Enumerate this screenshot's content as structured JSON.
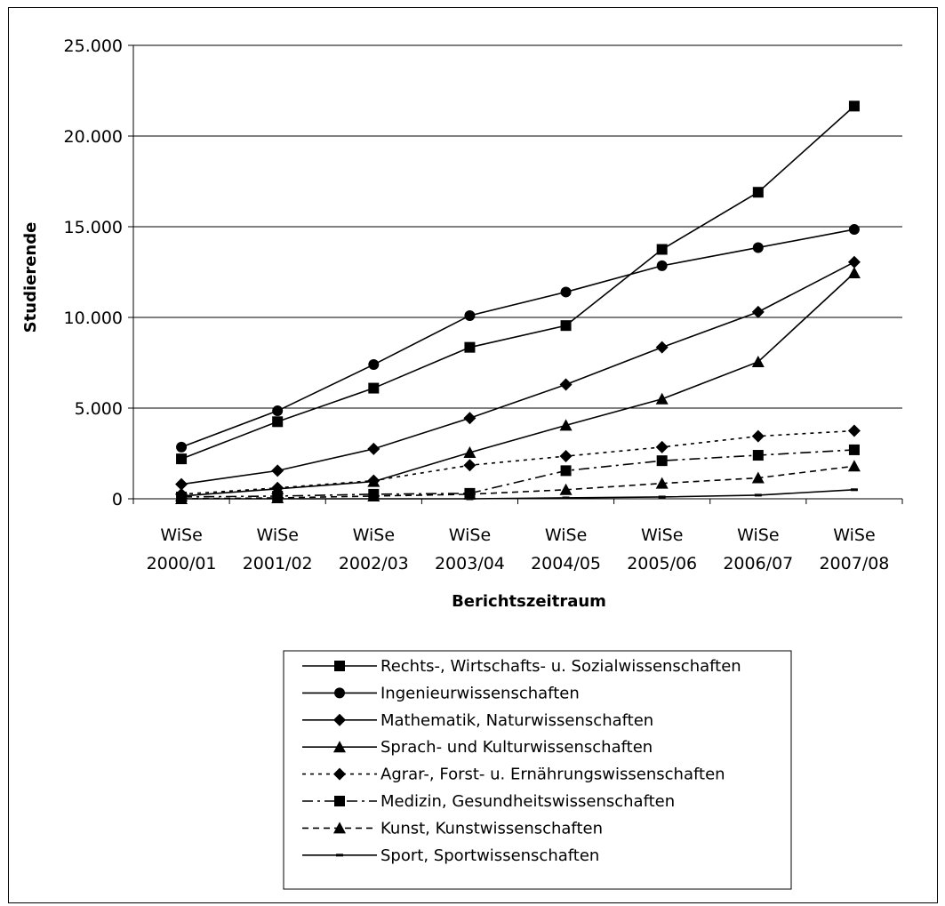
{
  "chart_data": {
    "type": "line",
    "title": "",
    "xlabel": "Berichtszeitraum",
    "ylabel": "Studierende",
    "ylim": [
      0,
      25000
    ],
    "yticks": [
      0,
      5000,
      10000,
      15000,
      20000,
      25000
    ],
    "ytick_labels": [
      "0",
      "5.000",
      "10.000",
      "15.000",
      "20.000",
      "25.000"
    ],
    "grid": "horizontal",
    "legend_position": "bottom",
    "categories": [
      [
        "WiSe",
        "2000/01"
      ],
      [
        "WiSe",
        "2001/02"
      ],
      [
        "WiSe",
        "2002/03"
      ],
      [
        "WiSe",
        "2003/04"
      ],
      [
        "WiSe",
        "2004/05"
      ],
      [
        "WiSe",
        "2005/06"
      ],
      [
        "WiSe",
        "2006/07"
      ],
      [
        "WiSe",
        "2007/08"
      ]
    ],
    "series": [
      {
        "name": "Rechts-, Wirtschafts- u. Sozialwissenschaften",
        "marker": "square",
        "dash": "solid",
        "values": [
          2200,
          4250,
          6100,
          8350,
          9550,
          13750,
          16900,
          21650
        ]
      },
      {
        "name": "Ingenieurwissenschaften",
        "marker": "circle",
        "dash": "solid",
        "values": [
          2850,
          4850,
          7400,
          10100,
          11400,
          12850,
          13850,
          14850
        ]
      },
      {
        "name": "Mathematik, Naturwissenschaften",
        "marker": "diamond",
        "dash": "solid",
        "values": [
          800,
          1550,
          2750,
          4450,
          6300,
          8350,
          10300,
          13050
        ]
      },
      {
        "name": "Sprach- und Kulturwissenschaften",
        "marker": "triangle",
        "dash": "solid",
        "values": [
          150,
          550,
          950,
          2550,
          4050,
          5500,
          7550,
          12450
        ]
      },
      {
        "name": "Agrar-, Forst- u. Ernährungswissenschaften",
        "marker": "diamond",
        "dash": "dotted",
        "values": [
          250,
          600,
          1000,
          1850,
          2350,
          2850,
          3450,
          3750
        ]
      },
      {
        "name": "Medizin, Gesundheitswissenschaften",
        "marker": "square",
        "dash": "dashdot",
        "values": [
          100,
          150,
          250,
          300,
          1550,
          2100,
          2400,
          2700
        ]
      },
      {
        "name": "Kunst, Kunstwissenschaften",
        "marker": "triangle",
        "dash": "dashed",
        "values": [
          0,
          50,
          150,
          250,
          500,
          850,
          1150,
          1800
        ]
      },
      {
        "name": "Sport, Sportwissenschaften",
        "marker": "dash",
        "dash": "solid",
        "values": [
          0,
          0,
          0,
          0,
          50,
          100,
          200,
          500
        ]
      }
    ],
    "colors": {
      "line": "#000000",
      "grid": "#000000",
      "background": "#ffffff"
    }
  }
}
